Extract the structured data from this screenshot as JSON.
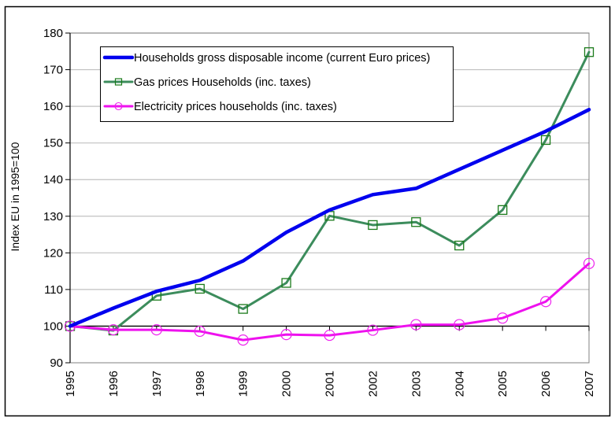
{
  "chart_data": {
    "type": "line",
    "title": "",
    "xlabel": "",
    "ylabel": "Index EU in 1995=100",
    "ylim": [
      90,
      180
    ],
    "yticks": [
      90,
      100,
      110,
      120,
      130,
      140,
      150,
      160,
      170,
      180
    ],
    "x_axis_crosses_at": 100,
    "grid": "horizontal",
    "legend_position": "top-left",
    "categories": [
      "1995",
      "1996",
      "1997",
      "1998",
      "1999",
      "2000",
      "2001",
      "2002",
      "2003",
      "2004",
      "2005",
      "2006",
      "2007"
    ],
    "series": [
      {
        "name": "Households gross disposable income (current Euro prices)",
        "color": "#0000ee",
        "marker": "none",
        "values": [
          100,
          104.9,
          109.5,
          112.5,
          117.8,
          125.6,
          131.7,
          135.9,
          137.6,
          142.8,
          148.0,
          153.2,
          159.1
        ]
      },
      {
        "name": "Gas prices Households (inc. taxes)",
        "color": "#3c8c5c",
        "marker_color": "#1a7a1a",
        "marker": "square",
        "values": [
          100,
          98.8,
          108.3,
          110.2,
          104.7,
          111.8,
          130.1,
          127.6,
          128.4,
          122.0,
          131.7,
          150.8,
          174.8
        ]
      },
      {
        "name": "Electricity prices households (inc. taxes)",
        "color": "#ee11ee",
        "marker_color": "#ee22ee",
        "marker": "circle",
        "values": [
          100,
          99.0,
          99.0,
          98.6,
          96.2,
          97.7,
          97.5,
          98.9,
          100.4,
          100.4,
          102.2,
          106.7,
          117.1
        ]
      }
    ]
  }
}
